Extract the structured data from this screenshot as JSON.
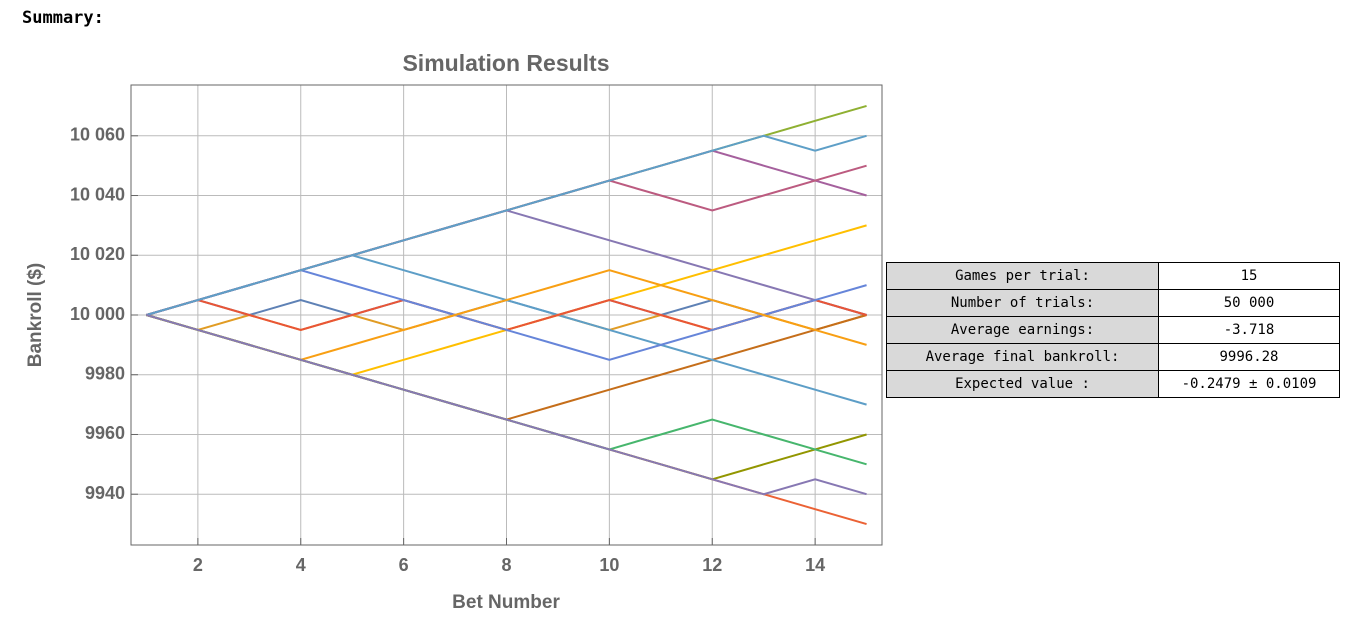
{
  "header": {
    "title": "Summary:"
  },
  "chart_data": {
    "type": "line",
    "title": "Simulation Results",
    "x_label": "Bet Number",
    "y_label": "Bankroll ($)",
    "x": [
      1,
      2,
      3,
      4,
      5,
      6,
      7,
      8,
      9,
      10,
      11,
      12,
      13,
      14,
      15
    ],
    "xlim": [
      0.7,
      15.3
    ],
    "ylim": [
      9923,
      10077
    ],
    "xticks": [
      2,
      4,
      6,
      8,
      10,
      12,
      14
    ],
    "yticks": [
      {
        "value": 9940,
        "label": "9940"
      },
      {
        "value": 9960,
        "label": "9960"
      },
      {
        "value": 9980,
        "label": "9980"
      },
      {
        "value": 10000,
        "label": "10 000"
      },
      {
        "value": 10020,
        "label": "10 020"
      },
      {
        "value": 10040,
        "label": "10 040"
      },
      {
        "value": 10060,
        "label": "10 060"
      }
    ],
    "grid": true,
    "series": [
      {
        "color": "#8fb032",
        "values": [
          10000,
          10005,
          10010,
          10015,
          10020,
          10025,
          10030,
          10035,
          10040,
          10045,
          10050,
          10055,
          10060,
          10065,
          10070
        ]
      },
      {
        "color": "#eb6235",
        "values": [
          10000,
          9995,
          9990,
          9985,
          9980,
          9975,
          9970,
          9965,
          9960,
          9955,
          9950,
          9945,
          9940,
          9935,
          9930
        ]
      },
      {
        "color": "#5e81b5",
        "values": [
          10000,
          10005,
          10000,
          10005,
          10000,
          10005,
          10000,
          10005,
          10000,
          10005,
          10000,
          10005,
          10000,
          10005,
          10000
        ]
      },
      {
        "color": "#e19c24",
        "values": [
          10000,
          9995,
          10000,
          9995,
          10000,
          9995,
          10000,
          9995,
          10000,
          9995,
          10000,
          9995,
          10000,
          9995,
          10000
        ]
      },
      {
        "color": "#8778b3",
        "values": [
          10000,
          10005,
          10010,
          10015,
          10020,
          10025,
          10030,
          10035,
          10030,
          10025,
          10020,
          10015,
          10010,
          10005,
          10000
        ]
      },
      {
        "color": "#c56e1a",
        "values": [
          10000,
          9995,
          9990,
          9985,
          9980,
          9975,
          9970,
          9965,
          9970,
          9975,
          9980,
          9985,
          9990,
          9995,
          10000
        ]
      },
      {
        "color": "#5d9ec7",
        "values": [
          10000,
          10005,
          10010,
          10015,
          10020,
          10015,
          10010,
          10005,
          10000,
          9995,
          9990,
          9985,
          9980,
          9975,
          9970
        ]
      },
      {
        "color": "#ffbf00",
        "values": [
          10000,
          9995,
          9990,
          9985,
          9980,
          9985,
          9990,
          9995,
          10000,
          10005,
          10010,
          10015,
          10020,
          10025,
          10030
        ]
      },
      {
        "color": "#a5609d",
        "values": [
          10000,
          10005,
          10010,
          10015,
          10020,
          10025,
          10030,
          10035,
          10040,
          10045,
          10050,
          10055,
          10050,
          10045,
          10040
        ]
      },
      {
        "color": "#929600",
        "values": [
          10000,
          9995,
          9990,
          9985,
          9980,
          9975,
          9970,
          9965,
          9960,
          9955,
          9950,
          9945,
          9950,
          9955,
          9960
        ]
      },
      {
        "color": "#e95536",
        "values": [
          10000,
          10005,
          10000,
          9995,
          10000,
          10005,
          10000,
          9995,
          10000,
          10005,
          10000,
          9995,
          10000,
          10005,
          10000
        ]
      },
      {
        "color": "#6685d9",
        "values": [
          10000,
          10005,
          10010,
          10015,
          10010,
          10005,
          10000,
          9995,
          9990,
          9985,
          9990,
          9995,
          10000,
          10005,
          10010
        ]
      },
      {
        "color": "#f89f13",
        "values": [
          10000,
          9995,
          9990,
          9985,
          9990,
          9995,
          10000,
          10005,
          10010,
          10015,
          10010,
          10005,
          10000,
          9995,
          9990
        ]
      },
      {
        "color": "#bc5b80",
        "values": [
          10000,
          10005,
          10010,
          10015,
          10020,
          10025,
          10030,
          10035,
          10040,
          10045,
          10040,
          10035,
          10040,
          10045,
          10050
        ]
      },
      {
        "color": "#47b66d",
        "values": [
          10000,
          9995,
          9990,
          9985,
          9980,
          9975,
          9970,
          9965,
          9960,
          9955,
          9960,
          9965,
          9960,
          9955,
          9950
        ]
      },
      {
        "color": "#5e9fc7",
        "values": [
          10000,
          10005,
          10010,
          10015,
          10020,
          10025,
          10030,
          10035,
          10040,
          10045,
          10050,
          10055,
          10060,
          10055,
          10060
        ]
      },
      {
        "color": "#8778b3",
        "values": [
          10000,
          9995,
          9990,
          9985,
          9980,
          9975,
          9970,
          9965,
          9960,
          9955,
          9950,
          9945,
          9940,
          9945,
          9940
        ]
      }
    ]
  },
  "table": {
    "rows": [
      [
        "Games per trial:",
        "15"
      ],
      [
        "Number of trials:",
        "50 000"
      ],
      [
        "Average earnings:",
        "-3.718"
      ],
      [
        "Average final bankroll:",
        "9996.28"
      ],
      [
        "Expected value :",
        "-0.2479 ± 0.0109"
      ]
    ]
  }
}
